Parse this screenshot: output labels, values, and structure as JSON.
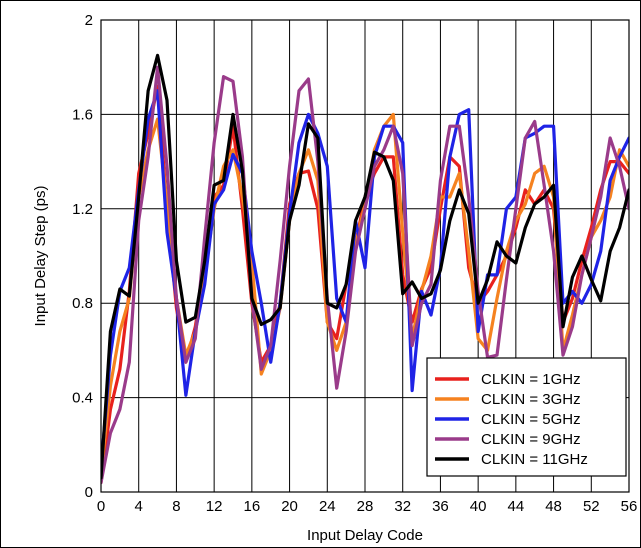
{
  "chart_data": {
    "type": "line",
    "xlabel": "Input Delay Code",
    "ylabel": "Input Delay Step (ps)",
    "xlim": [
      0,
      56
    ],
    "ylim": [
      0,
      2
    ],
    "xticks": [
      0,
      4,
      8,
      12,
      16,
      20,
      24,
      28,
      32,
      36,
      40,
      44,
      48,
      52,
      56
    ],
    "yticks": [
      0,
      0.4,
      0.8,
      1.2,
      1.6,
      2
    ],
    "ytick_labels": [
      "0",
      "0.4",
      "0.8",
      "1.2",
      "1.6",
      "2"
    ],
    "grid": true,
    "legend_position": "bottom-right",
    "x": [
      0,
      1,
      2,
      3,
      4,
      5,
      6,
      7,
      8,
      9,
      10,
      11,
      12,
      13,
      14,
      15,
      16,
      17,
      18,
      19,
      20,
      21,
      22,
      23,
      24,
      25,
      26,
      27,
      28,
      29,
      30,
      31,
      32,
      33,
      34,
      35,
      36,
      37,
      38,
      39,
      40,
      41,
      42,
      43,
      44,
      45,
      46,
      47,
      48,
      49,
      50,
      51,
      52,
      53,
      54,
      55,
      56
    ],
    "series": [
      {
        "name": "CLKIN = 1GHz",
        "color": "#e8211d",
        "values": [
          0.04,
          0.35,
          0.52,
          0.85,
          1.35,
          1.52,
          1.72,
          1.2,
          0.78,
          0.55,
          0.7,
          0.95,
          1.25,
          1.3,
          1.55,
          1.2,
          0.8,
          0.55,
          0.62,
          0.8,
          1.22,
          1.35,
          1.36,
          1.2,
          0.72,
          0.65,
          0.88,
          1.05,
          1.25,
          1.35,
          1.42,
          1.42,
          0.92,
          0.72,
          0.86,
          0.95,
          1.2,
          1.42,
          1.38,
          0.95,
          0.8,
          0.85,
          0.92,
          1.0,
          1.12,
          1.28,
          1.22,
          1.28,
          1.2,
          0.72,
          0.82,
          0.98,
          1.12,
          1.28,
          1.4,
          1.4,
          1.35
        ]
      },
      {
        "name": "CLKIN = 3GHz",
        "color": "#f58220",
        "values": [
          0.08,
          0.45,
          0.68,
          0.82,
          1.25,
          1.45,
          1.58,
          1.22,
          0.82,
          0.58,
          0.68,
          0.92,
          1.2,
          1.38,
          1.45,
          1.25,
          0.98,
          0.5,
          0.6,
          0.78,
          1.15,
          1.35,
          1.45,
          1.32,
          0.72,
          0.6,
          0.72,
          1.05,
          1.22,
          1.45,
          1.55,
          1.6,
          1.1,
          0.65,
          0.85,
          1.0,
          1.25,
          1.25,
          1.35,
          1.02,
          0.65,
          0.6,
          0.82,
          1.02,
          1.15,
          1.22,
          1.35,
          1.38,
          1.25,
          0.6,
          0.75,
          0.92,
          1.08,
          1.15,
          1.25,
          1.45,
          1.38
        ]
      },
      {
        "name": "CLKIN = 5GHz",
        "color": "#1f23e6",
        "values": [
          0.1,
          0.58,
          0.85,
          0.95,
          1.28,
          1.58,
          1.7,
          1.1,
          0.82,
          0.41,
          0.68,
          0.88,
          1.22,
          1.28,
          1.43,
          1.35,
          1.02,
          0.8,
          0.55,
          0.8,
          1.18,
          1.48,
          1.6,
          1.52,
          1.38,
          0.82,
          0.72,
          1.15,
          0.95,
          1.42,
          1.55,
          1.55,
          1.48,
          0.43,
          0.85,
          0.75,
          0.95,
          1.42,
          1.6,
          1.62,
          0.68,
          0.92,
          0.92,
          1.2,
          1.25,
          1.5,
          1.52,
          1.55,
          1.55,
          0.8,
          0.85,
          0.8,
          0.88,
          1.02,
          1.32,
          1.42,
          1.5
        ]
      },
      {
        "name": "CLKIN = 9GHz",
        "color": "#9a3b8a",
        "values": [
          0.04,
          0.25,
          0.35,
          0.55,
          1.15,
          1.42,
          1.8,
          1.38,
          0.82,
          0.55,
          0.65,
          1.08,
          1.48,
          1.76,
          1.74,
          1.42,
          0.82,
          0.52,
          0.62,
          0.98,
          1.38,
          1.7,
          1.75,
          1.4,
          0.82,
          0.44,
          0.68,
          1.02,
          1.2,
          1.38,
          1.45,
          1.55,
          1.35,
          0.62,
          0.8,
          0.88,
          1.32,
          1.55,
          1.55,
          1.25,
          0.85,
          0.57,
          0.58,
          0.9,
          1.2,
          1.5,
          1.57,
          1.3,
          1.02,
          0.58,
          0.7,
          0.92,
          1.08,
          1.25,
          1.5,
          1.38,
          1.2
        ]
      },
      {
        "name": "CLKIN = 11GHz",
        "color": "#000000",
        "values": [
          0.06,
          0.68,
          0.86,
          0.83,
          1.25,
          1.7,
          1.85,
          1.66,
          0.98,
          0.72,
          0.74,
          0.98,
          1.3,
          1.32,
          1.6,
          1.36,
          0.82,
          0.71,
          0.73,
          0.78,
          1.15,
          1.3,
          1.56,
          1.5,
          0.8,
          0.78,
          0.88,
          1.15,
          1.25,
          1.44,
          1.42,
          1.32,
          0.84,
          0.89,
          0.82,
          0.84,
          0.94,
          1.15,
          1.28,
          1.18,
          0.8,
          0.9,
          1.06,
          1.0,
          0.97,
          1.12,
          1.22,
          1.25,
          1.3,
          0.7,
          0.91,
          1.0,
          0.9,
          0.81,
          1.02,
          1.12,
          1.28
        ]
      }
    ]
  }
}
